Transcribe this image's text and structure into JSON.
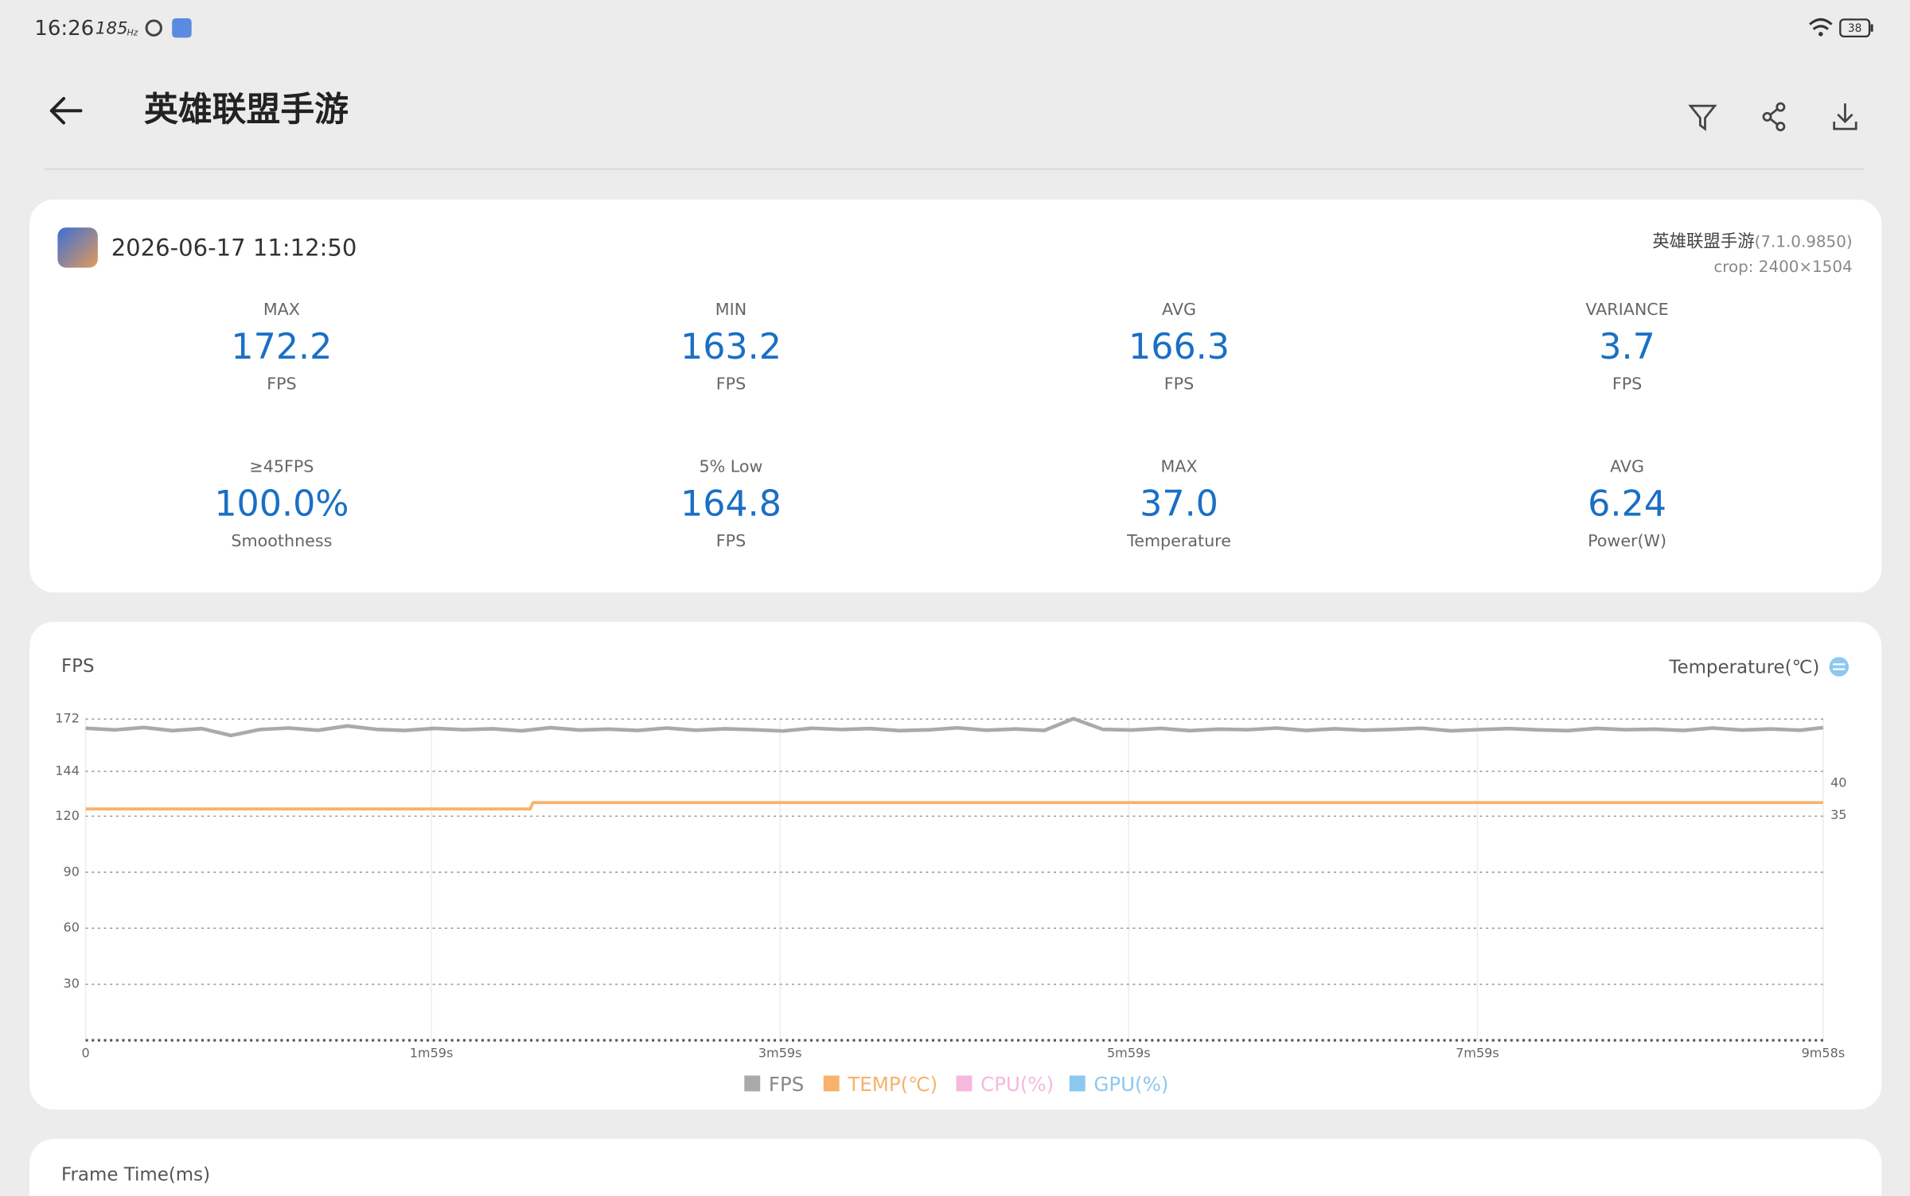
{
  "status_bar": {
    "time": "16:26",
    "refresh_rate": "185",
    "refresh_unit": "Hz",
    "battery": "38"
  },
  "header": {
    "title": "英雄联盟手游"
  },
  "session": {
    "date": "2026-06-17 11:12:50",
    "app": "英雄联盟手游",
    "version": "(7.1.0.9850)",
    "crop": "crop: 2400×1504"
  },
  "metrics": [
    {
      "label": "MAX",
      "value": "172.2",
      "unit": "FPS"
    },
    {
      "label": "MIN",
      "value": "163.2",
      "unit": "FPS"
    },
    {
      "label": "AVG",
      "value": "166.3",
      "unit": "FPS"
    },
    {
      "label": "VARIANCE",
      "value": "3.7",
      "unit": "FPS"
    },
    {
      "label": "≥45FPS",
      "value": "100.0%",
      "unit": "Smoothness"
    },
    {
      "label": "5% Low",
      "value": "164.8",
      "unit": "FPS"
    },
    {
      "label": "MAX",
      "value": "37.0",
      "unit": "Temperature"
    },
    {
      "label": "AVG",
      "value": "6.24",
      "unit": "Power(W)"
    }
  ],
  "chart_data": {
    "type": "line",
    "y_label": "FPS",
    "y2_label": "Temperature(℃)",
    "xlim": [
      0,
      598
    ],
    "xticks": [
      0,
      {
        "value": 119,
        "label": "1m59s"
      },
      {
        "value": 239,
        "label": "3m59s"
      },
      {
        "value": 359,
        "label": "5m59s"
      },
      {
        "value": 479,
        "label": "7m59s"
      },
      {
        "value": 598,
        "label": "9m58s"
      }
    ],
    "ylim": [
      0,
      172
    ],
    "yticks": [
      30,
      60,
      90,
      120,
      144,
      172
    ],
    "y2lim": [
      0,
      50
    ],
    "y2ticks": [
      35,
      40
    ],
    "grid": true,
    "series": [
      {
        "name": "FPS",
        "color": "#aaaaaa",
        "x": [
          0,
          10,
          20,
          30,
          40,
          50,
          60,
          70,
          80,
          90,
          100,
          110,
          120,
          130,
          140,
          150,
          160,
          170,
          180,
          190,
          200,
          210,
          220,
          230,
          240,
          250,
          260,
          270,
          280,
          290,
          300,
          310,
          320,
          330,
          340,
          350,
          360,
          370,
          380,
          390,
          400,
          410,
          420,
          430,
          440,
          450,
          460,
          470,
          480,
          490,
          500,
          510,
          520,
          530,
          540,
          550,
          560,
          570,
          580,
          590,
          598
        ],
        "values": [
          167.1,
          166.2,
          167.5,
          165.8,
          166.9,
          163.2,
          166.4,
          167.2,
          166.0,
          168.3,
          166.5,
          165.9,
          167.0,
          166.3,
          166.8,
          165.7,
          167.4,
          166.1,
          166.6,
          165.9,
          167.2,
          166.0,
          166.8,
          166.3,
          165.6,
          167.1,
          166.4,
          166.9,
          165.8,
          166.2,
          167.3,
          166.0,
          166.7,
          165.9,
          172.2,
          166.5,
          166.1,
          167.0,
          165.8,
          166.6,
          166.3,
          167.2,
          165.9,
          166.8,
          166.0,
          166.5,
          167.1,
          165.7,
          166.4,
          166.9,
          166.2,
          165.8,
          167.0,
          166.3,
          166.6,
          165.9,
          167.2,
          166.1,
          166.7,
          166.0,
          167.4
        ]
      },
      {
        "name": "TEMP(℃)",
        "color": "#f7b26b",
        "axis": "y2",
        "x": [
          0,
          153,
          154,
          598
        ],
        "values": [
          36,
          36,
          37,
          37
        ]
      },
      {
        "name": "CPU(%)",
        "color": "#f6b8dc",
        "x": [],
        "values": []
      },
      {
        "name": "GPU(%)",
        "color": "#8cc8f0",
        "x": [],
        "values": []
      }
    ]
  },
  "frame_time": {
    "title": "Frame Time(ms)"
  }
}
